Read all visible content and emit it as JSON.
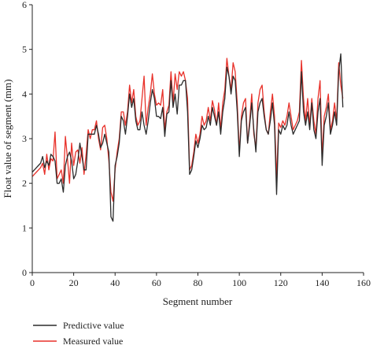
{
  "chart_data": {
    "type": "line",
    "xlabel": "Segment number",
    "ylabel": "Float value of segment (mm)",
    "xlim": [
      0,
      160
    ],
    "ylim": [
      0,
      6
    ],
    "xticks": [
      0,
      20,
      40,
      60,
      80,
      100,
      120,
      140,
      160
    ],
    "yticks": [
      0,
      1,
      2,
      3,
      4,
      5,
      6
    ],
    "grid": false,
    "legend_position": "bottom-left",
    "series": [
      {
        "name": "Predictive value",
        "color": "#2b2b2b",
        "values": [
          2.25,
          2.3,
          2.35,
          2.4,
          2.45,
          2.6,
          2.35,
          2.5,
          2.4,
          2.65,
          2.6,
          2.5,
          2.0,
          2.0,
          2.1,
          1.8,
          2.4,
          2.6,
          2.7,
          2.5,
          2.1,
          2.2,
          2.5,
          2.9,
          2.6,
          2.3,
          2.3,
          3.1,
          3.1,
          3.1,
          3.1,
          3.3,
          3.1,
          2.8,
          2.9,
          3.1,
          2.9,
          2.7,
          1.25,
          1.15,
          2.4,
          2.6,
          2.9,
          3.5,
          3.4,
          3.1,
          3.5,
          4.0,
          3.7,
          3.9,
          3.4,
          3.2,
          3.2,
          3.6,
          3.3,
          3.1,
          3.4,
          3.8,
          4.1,
          3.9,
          3.5,
          3.5,
          3.45,
          3.7,
          3.05,
          3.55,
          3.6,
          4.3,
          3.7,
          4.0,
          3.55,
          4.2,
          4.2,
          4.3,
          4.3,
          3.6,
          2.2,
          2.3,
          2.6,
          2.95,
          2.8,
          3.0,
          3.3,
          3.2,
          3.25,
          3.5,
          3.3,
          3.7,
          3.5,
          3.3,
          3.6,
          3.1,
          3.6,
          3.9,
          4.6,
          4.4,
          4.0,
          4.4,
          4.3,
          3.6,
          2.6,
          3.4,
          3.6,
          3.7,
          2.9,
          3.3,
          3.8,
          3.2,
          2.7,
          3.6,
          3.8,
          3.9,
          3.5,
          3.2,
          3.1,
          3.4,
          3.8,
          3.3,
          1.75,
          3.2,
          3.1,
          3.3,
          3.2,
          3.3,
          3.6,
          3.3,
          3.1,
          3.2,
          3.3,
          3.4,
          4.5,
          3.6,
          3.3,
          3.6,
          3.2,
          3.8,
          3.2,
          3.0,
          3.6,
          3.9,
          2.4,
          3.3,
          3.5,
          3.8,
          3.1,
          3.3,
          3.6,
          3.3,
          4.5,
          4.9,
          3.7
        ]
      },
      {
        "name": "Measured value",
        "color": "#e8312a",
        "values": [
          2.15,
          2.2,
          2.25,
          2.3,
          2.35,
          2.45,
          2.2,
          2.65,
          2.3,
          2.55,
          2.5,
          3.15,
          2.1,
          2.2,
          2.3,
          2.0,
          3.05,
          2.55,
          2.0,
          2.9,
          2.4,
          2.7,
          2.75,
          2.45,
          2.8,
          2.2,
          2.65,
          3.2,
          3.0,
          3.2,
          3.2,
          3.4,
          3.0,
          2.75,
          3.25,
          3.3,
          3.0,
          2.5,
          1.8,
          1.6,
          2.3,
          2.7,
          3.0,
          3.6,
          3.6,
          3.3,
          3.6,
          4.2,
          3.8,
          4.1,
          3.5,
          3.3,
          3.4,
          3.9,
          4.4,
          3.3,
          3.7,
          4.0,
          4.45,
          4.0,
          3.75,
          3.8,
          3.75,
          4.1,
          3.2,
          3.6,
          3.75,
          4.5,
          3.8,
          4.45,
          4.1,
          4.5,
          4.4,
          4.5,
          4.3,
          3.9,
          2.3,
          2.4,
          2.7,
          3.1,
          2.9,
          3.1,
          3.5,
          3.3,
          3.4,
          3.7,
          3.4,
          3.85,
          3.65,
          3.3,
          3.8,
          3.2,
          3.8,
          4.1,
          4.8,
          4.4,
          4.1,
          4.7,
          4.5,
          3.8,
          2.7,
          3.5,
          3.8,
          3.9,
          2.9,
          3.4,
          4.0,
          3.1,
          2.8,
          3.8,
          4.1,
          4.2,
          3.6,
          3.2,
          3.1,
          3.6,
          4.0,
          3.5,
          2.1,
          3.35,
          3.25,
          3.4,
          3.3,
          3.5,
          3.8,
          3.5,
          3.2,
          3.3,
          3.4,
          3.6,
          4.75,
          3.9,
          3.4,
          3.9,
          3.3,
          3.9,
          3.4,
          3.1,
          3.9,
          4.3,
          2.6,
          3.5,
          3.7,
          4.0,
          3.2,
          3.4,
          3.8,
          3.4,
          4.7,
          4.2,
          3.9
        ]
      }
    ]
  }
}
